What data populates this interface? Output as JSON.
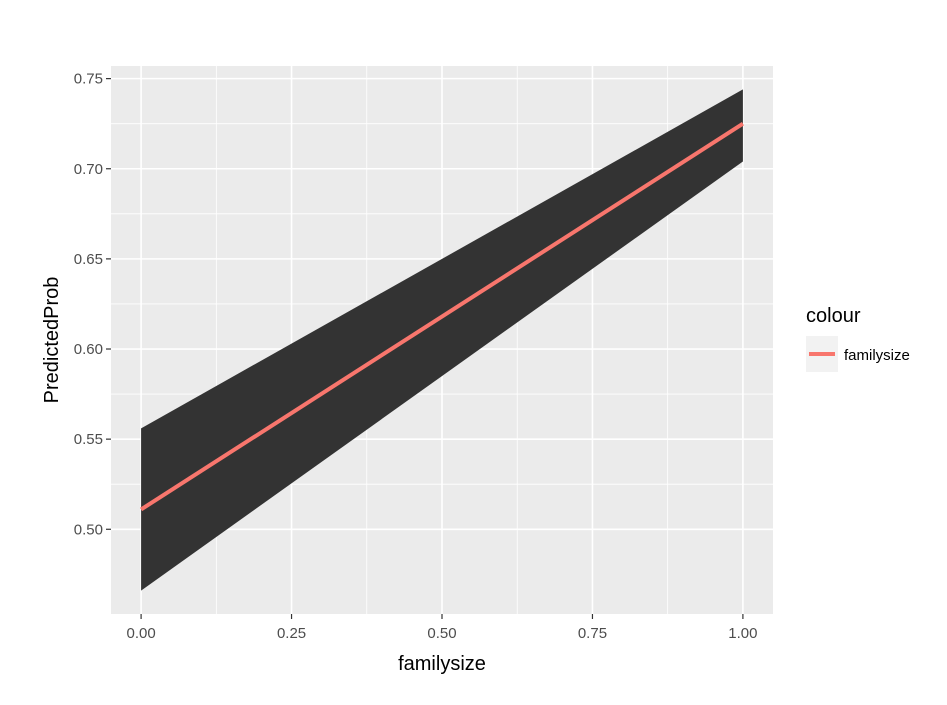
{
  "chart_data": {
    "type": "line",
    "xlabel": "familysize",
    "ylabel": "PredictedProb",
    "xlim": [
      -0.05,
      1.05
    ],
    "ylim": [
      0.453,
      0.757
    ],
    "x_ticks": [
      0.0,
      0.25,
      0.5,
      0.75,
      1.0
    ],
    "x_tick_labels": [
      "0.00",
      "0.25",
      "0.50",
      "0.75",
      "1.00"
    ],
    "y_ticks": [
      0.5,
      0.55,
      0.6,
      0.65,
      0.7,
      0.75
    ],
    "y_tick_labels": [
      "0.50",
      "0.55",
      "0.60",
      "0.65",
      "0.70",
      "0.75"
    ],
    "grid": true,
    "series": [
      {
        "name": "familysize",
        "color": "#f8766d",
        "x": [
          0.0,
          1.0
        ],
        "y": [
          0.511,
          0.725
        ],
        "lower": [
          0.466,
          0.704
        ],
        "upper": [
          0.556,
          0.744
        ]
      }
    ],
    "ribbon_color": "#333333",
    "panel_background": "#ebebeb",
    "legend": {
      "title": "colour",
      "placement": "right",
      "entries": [
        "familysize"
      ]
    }
  }
}
